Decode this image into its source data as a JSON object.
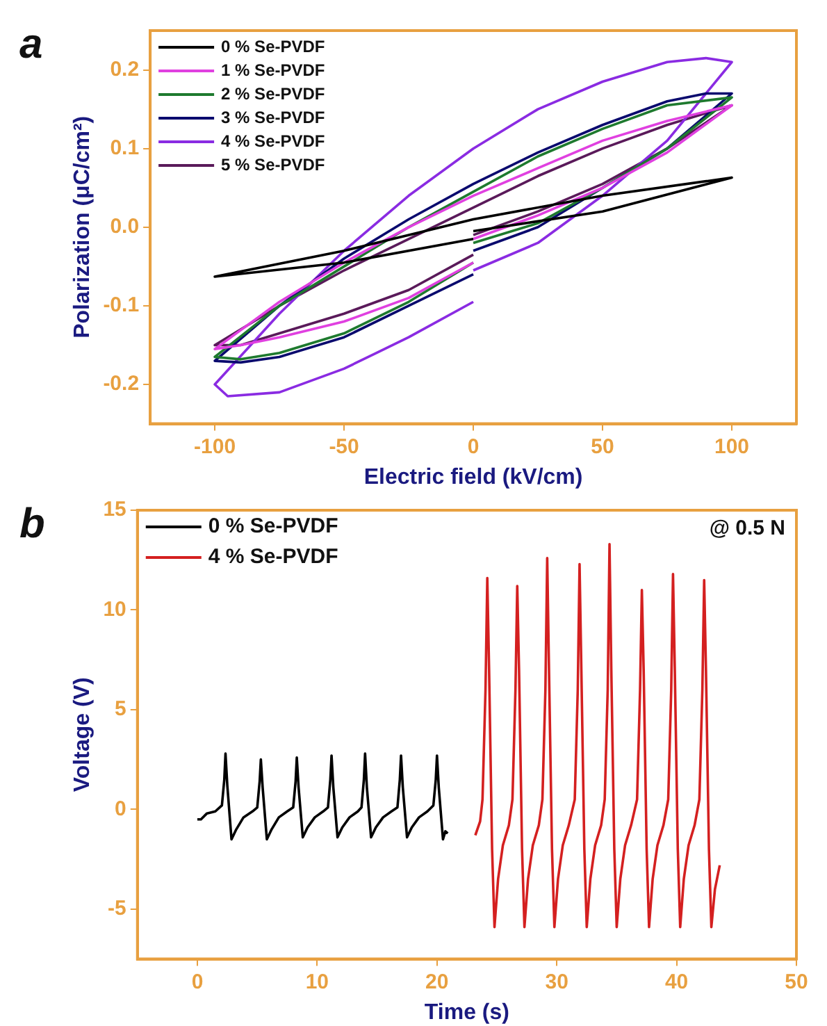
{
  "chart_data": [
    {
      "type": "line",
      "xlabel": "Electric field (kV/cm)",
      "ylabel": "Polarization (μC/cm²)",
      "annotations": [
        "a"
      ],
      "legend": "top left",
      "line_style": "solid",
      "xlim": [
        -125,
        125
      ],
      "xticks": [
        -100,
        -50,
        0,
        50,
        100
      ],
      "ylim": [
        -0.25,
        0.25
      ],
      "yticks": [
        -0.2,
        -0.1,
        {
          "value": 0,
          "label": "0.0"
        },
        0.1,
        0.2
      ],
      "series": [
        {
          "name": "0 % Se-PVDF",
          "color": "#000000",
          "x": [
            0,
            50,
            100,
            50,
            0,
            -50,
            -100,
            -50,
            0
          ],
          "values": [
            -0.005,
            0.02,
            0.063,
            0.04,
            0.01,
            -0.03,
            -0.063,
            -0.045,
            -0.015
          ]
        },
        {
          "name": "1 % Se-PVDF",
          "color": "#e040e0",
          "x": [
            0,
            25,
            50,
            75,
            100,
            75,
            50,
            25,
            0,
            -25,
            -50,
            -75,
            -100,
            -90,
            -75,
            -50,
            -25,
            0
          ],
          "values": [
            -0.015,
            0.015,
            0.05,
            0.095,
            0.155,
            0.135,
            0.11,
            0.075,
            0.04,
            0.0,
            -0.045,
            -0.095,
            -0.155,
            -0.15,
            -0.14,
            -0.12,
            -0.09,
            -0.045
          ]
        },
        {
          "name": "2 % Se-PVDF",
          "color": "#1e7a2e",
          "x": [
            0,
            25,
            50,
            75,
            100,
            75,
            50,
            25,
            0,
            -25,
            -50,
            -75,
            -100,
            -90,
            -75,
            -50,
            -25,
            0
          ],
          "values": [
            -0.02,
            0.005,
            0.05,
            0.1,
            0.165,
            0.155,
            0.125,
            0.09,
            0.045,
            0.0,
            -0.05,
            -0.1,
            -0.165,
            -0.168,
            -0.16,
            -0.135,
            -0.095,
            -0.045
          ]
        },
        {
          "name": "3 % Se-PVDF",
          "color": "#0a0a6e",
          "x": [
            0,
            25,
            50,
            75,
            100,
            90,
            75,
            50,
            25,
            0,
            -25,
            -50,
            -75,
            -100,
            -90,
            -75,
            -50,
            -25,
            0
          ],
          "values": [
            -0.03,
            0.0,
            0.05,
            0.1,
            0.17,
            0.17,
            0.16,
            0.13,
            0.095,
            0.055,
            0.01,
            -0.04,
            -0.1,
            -0.17,
            -0.172,
            -0.165,
            -0.14,
            -0.1,
            -0.06
          ]
        },
        {
          "name": "4 % Se-PVDF",
          "color": "#8a2be2",
          "x": [
            0,
            25,
            50,
            75,
            100,
            90,
            75,
            50,
            25,
            0,
            -25,
            -50,
            -75,
            -100,
            -95,
            -75,
            -50,
            -25,
            0
          ],
          "values": [
            -0.055,
            -0.02,
            0.04,
            0.11,
            0.21,
            0.215,
            0.21,
            0.185,
            0.15,
            0.1,
            0.04,
            -0.03,
            -0.11,
            -0.2,
            -0.215,
            -0.21,
            -0.18,
            -0.14,
            -0.095
          ]
        },
        {
          "name": "5 % Se-PVDF",
          "color": "#5a1a5a",
          "x": [
            0,
            25,
            50,
            75,
            100,
            75,
            50,
            25,
            0,
            -25,
            -50,
            -75,
            -100,
            -90,
            -75,
            -50,
            -25,
            0
          ],
          "values": [
            -0.01,
            0.02,
            0.055,
            0.1,
            0.155,
            0.13,
            0.1,
            0.065,
            0.025,
            -0.015,
            -0.055,
            -0.1,
            -0.15,
            -0.15,
            -0.135,
            -0.11,
            -0.08,
            -0.035
          ]
        }
      ]
    },
    {
      "type": "line",
      "xlabel": "Time (s)",
      "ylabel": "Voltage (V)",
      "annotations": [
        "b",
        "@ 0.5 N"
      ],
      "legend": "top left",
      "line_style": "solid",
      "xlim": [
        -5,
        50
      ],
      "xticks": [
        0,
        10,
        20,
        30,
        40,
        50
      ],
      "ylim": [
        -7.5,
        15
      ],
      "yticks": [
        -5,
        0,
        5,
        10,
        15
      ],
      "series": [
        {
          "name": "0 % Se-PVDF",
          "color": "#000000",
          "x": [
            0,
            0.3,
            0.8,
            1.5,
            2.05,
            2.25,
            2.35,
            2.5,
            2.85,
            3.25,
            3.85,
            4.6,
            5.0,
            5.2,
            5.3,
            5.45,
            5.8,
            6.2,
            6.8,
            7.5,
            8.0,
            8.2,
            8.3,
            8.45,
            8.8,
            9.2,
            9.8,
            10.5,
            10.9,
            11.1,
            11.2,
            11.35,
            11.7,
            12.1,
            12.7,
            13.4,
            13.7,
            13.9,
            14.0,
            14.15,
            14.5,
            14.9,
            15.5,
            16.2,
            16.7,
            16.9,
            17.0,
            17.15,
            17.5,
            17.9,
            18.5,
            19.2,
            19.7,
            19.9,
            20.0,
            20.15,
            20.5,
            20.7,
            20.9
          ],
          "values": [
            -0.5,
            -0.5,
            -0.2,
            -0.1,
            0.2,
            1.5,
            2.8,
            1.2,
            -1.5,
            -1.0,
            -0.4,
            -0.1,
            0.1,
            1.4,
            2.5,
            1.1,
            -1.5,
            -1.0,
            -0.4,
            -0.1,
            0.1,
            1.4,
            2.6,
            1.1,
            -1.4,
            -0.9,
            -0.4,
            -0.1,
            0.1,
            1.5,
            2.7,
            1.1,
            -1.4,
            -0.9,
            -0.4,
            -0.1,
            0.1,
            1.5,
            2.8,
            1.1,
            -1.4,
            -0.9,
            -0.4,
            -0.1,
            0.1,
            1.5,
            2.7,
            1.1,
            -1.4,
            -0.9,
            -0.4,
            -0.1,
            0.2,
            1.5,
            2.7,
            1.1,
            -1.5,
            -1.1,
            -1.2
          ]
        },
        {
          "name": "4 % Se-PVDF",
          "color": "#d42020",
          "x": [
            23.2,
            23.6,
            23.8,
            24.05,
            24.2,
            24.35,
            24.6,
            24.8,
            25.1,
            25.5,
            26.0,
            26.3,
            26.55,
            26.7,
            26.85,
            27.1,
            27.3,
            27.6,
            28.0,
            28.5,
            28.8,
            29.05,
            29.2,
            29.35,
            29.6,
            29.8,
            30.1,
            30.5,
            31.0,
            31.5,
            31.75,
            31.9,
            32.05,
            32.3,
            32.5,
            32.8,
            33.2,
            33.7,
            34.0,
            34.25,
            34.4,
            34.55,
            34.8,
            35.0,
            35.3,
            35.7,
            36.2,
            36.7,
            36.95,
            37.1,
            37.25,
            37.5,
            37.7,
            38.0,
            38.4,
            38.9,
            39.3,
            39.55,
            39.7,
            39.85,
            40.1,
            40.3,
            40.6,
            41.0,
            41.5,
            41.9,
            42.15,
            42.3,
            42.45,
            42.7,
            42.9,
            43.2,
            43.6
          ],
          "values": [
            -1.3,
            -0.6,
            0.5,
            6,
            11.6,
            7,
            -2,
            -5.9,
            -3.5,
            -1.8,
            -0.8,
            0.5,
            6,
            11.2,
            7,
            -2,
            -5.9,
            -3.5,
            -1.8,
            -0.8,
            0.5,
            6,
            12.6,
            7,
            -2,
            -5.9,
            -3.5,
            -1.8,
            -0.8,
            0.5,
            6,
            12.3,
            7,
            -2,
            -5.9,
            -3.5,
            -1.8,
            -0.8,
            0.5,
            6,
            13.3,
            7,
            -2,
            -5.9,
            -3.5,
            -1.8,
            -0.8,
            0.5,
            6,
            11.0,
            7,
            -2,
            -5.9,
            -3.5,
            -1.8,
            -0.8,
            0.5,
            6,
            11.8,
            7,
            -2,
            -5.9,
            -3.5,
            -1.8,
            -0.8,
            0.5,
            6,
            11.5,
            7,
            -2,
            -5.9,
            -4,
            -2.8
          ]
        }
      ]
    }
  ]
}
